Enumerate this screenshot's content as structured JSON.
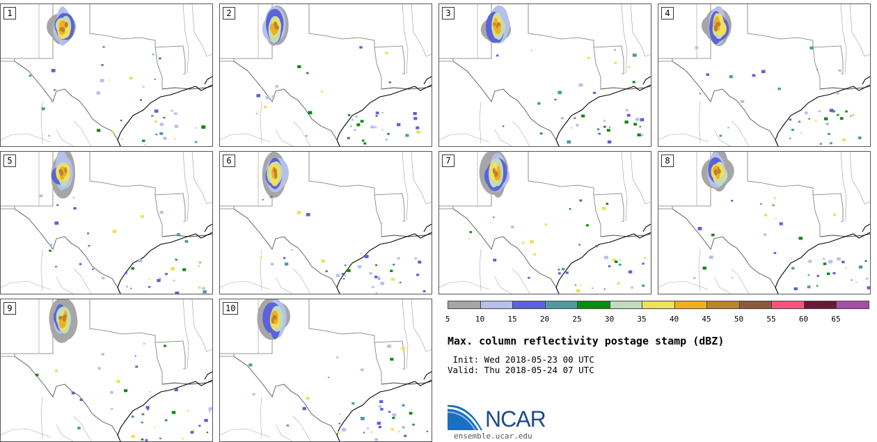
{
  "panels": [
    {
      "label": "1"
    },
    {
      "label": "2"
    },
    {
      "label": "3"
    },
    {
      "label": "4"
    },
    {
      "label": "5"
    },
    {
      "label": "6"
    },
    {
      "label": "7"
    },
    {
      "label": "8"
    },
    {
      "label": "9"
    },
    {
      "label": "10"
    }
  ],
  "colorbar": {
    "colors": [
      "#a6a6a6",
      "#b6c0ea",
      "#5a63d8",
      "#4f9aa0",
      "#0b8a10",
      "#bfdcbf",
      "#eee060",
      "#eeb020",
      "#bb8232",
      "#8c5a3a",
      "#f4557d",
      "#6a1838",
      "#a84fa8"
    ],
    "ticks": [
      "5",
      "10",
      "15",
      "20",
      "25",
      "30",
      "35",
      "40",
      "45",
      "50",
      "55",
      "60",
      "65"
    ]
  },
  "title": "Max. column reflectivity postage stamp (dBZ)",
  "init": " Init: Wed 2018-05-23 00 UTC",
  "valid": "Valid: Thu 2018-05-24 07 UTC",
  "logo": {
    "text": "NCAR",
    "site": "ensemble.ucar.edu"
  }
}
